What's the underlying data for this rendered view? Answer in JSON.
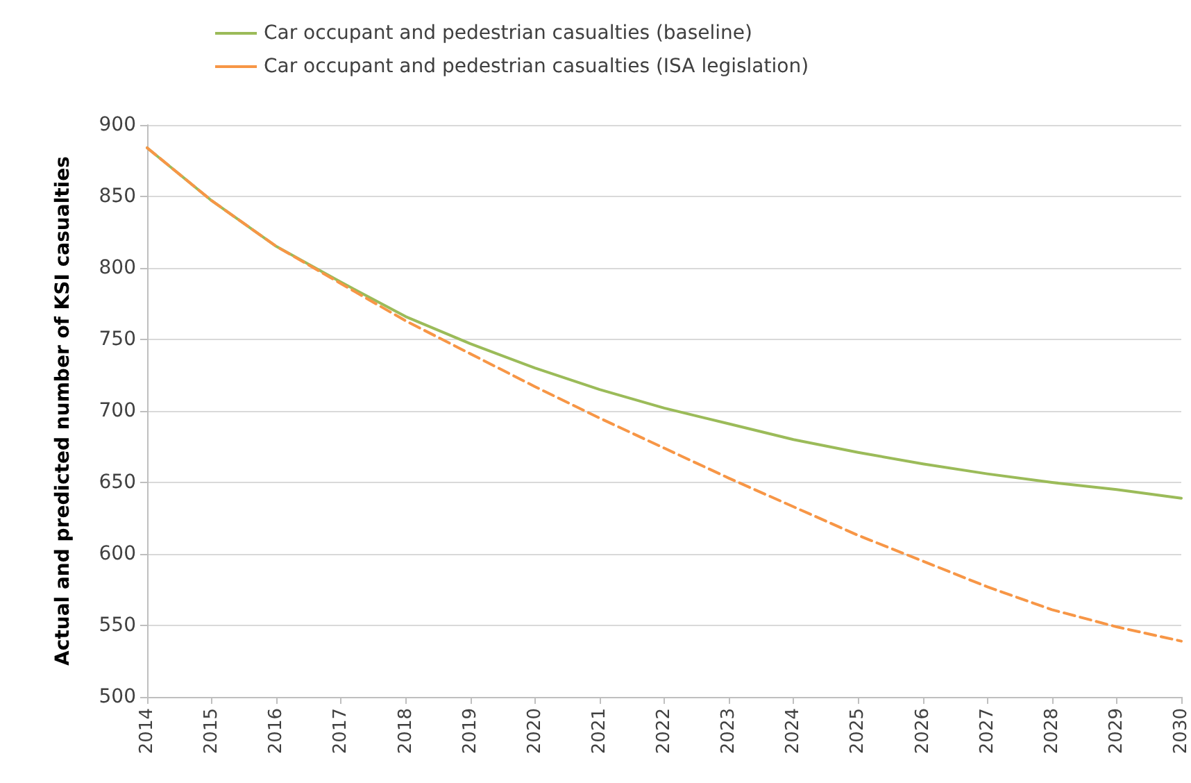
{
  "chart_data": {
    "type": "line",
    "ylabel": "Actual and predicted number of KSI casualties",
    "categories": [
      "2014",
      "2015",
      "2016",
      "2017",
      "2018",
      "2019",
      "2020",
      "2021",
      "2022",
      "2023",
      "2024",
      "2025",
      "2026",
      "2027",
      "2028",
      "2029",
      "2030"
    ],
    "series": [
      {
        "name": "Car occupant and pedestrian casualties (baseline)",
        "color": "#9bbb59",
        "line_style": "solid",
        "values": [
          884,
          847,
          815,
          790,
          766,
          747,
          730,
          715,
          702,
          691,
          680,
          671,
          663,
          656,
          650,
          645,
          639
        ]
      },
      {
        "name": "Car occupant and pedestrian casualties (ISA legislation)",
        "color": "#f79646",
        "line_style": "dashed",
        "values": [
          884,
          847,
          815,
          789,
          763,
          740,
          717,
          695,
          674,
          653,
          633,
          613,
          595,
          577,
          561,
          549,
          539
        ]
      }
    ],
    "ylim": [
      500,
      900
    ],
    "yticks": [
      500,
      550,
      600,
      650,
      700,
      750,
      800,
      850,
      900
    ],
    "grid": "y",
    "legend": "top",
    "marker": "none"
  }
}
